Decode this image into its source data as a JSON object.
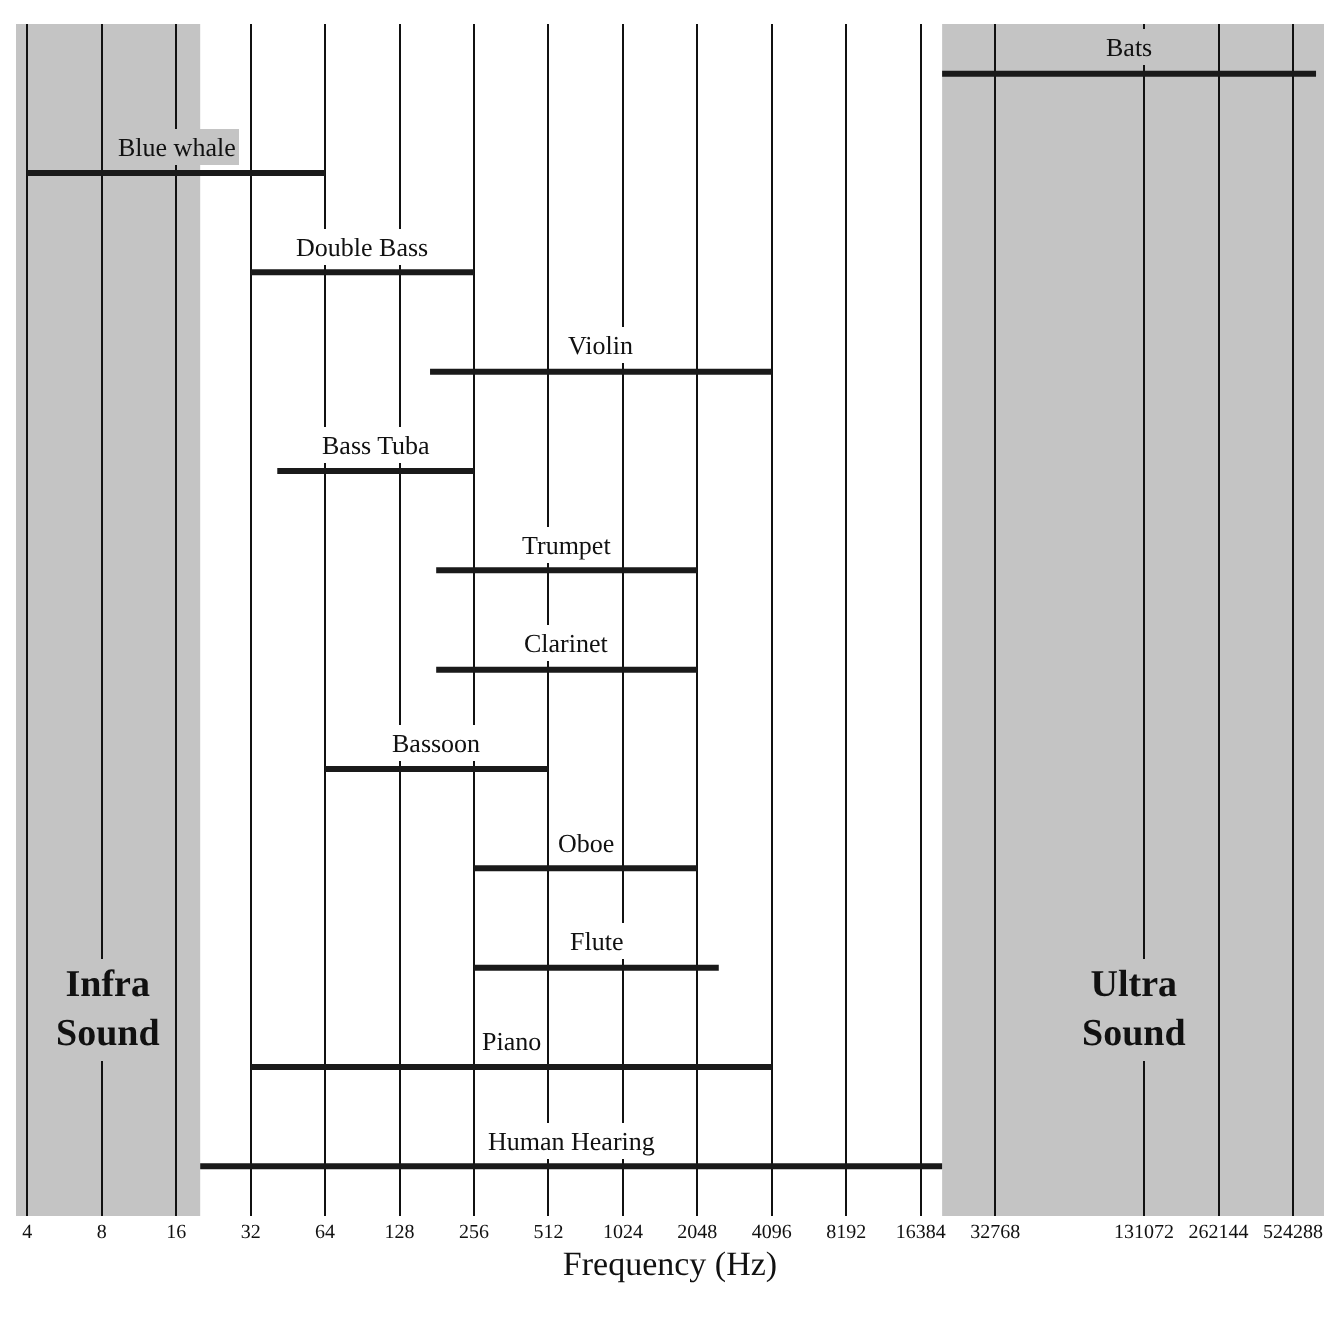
{
  "chart_data": {
    "type": "bar",
    "orientation": "horizontal",
    "xlabel": "Frequency (Hz)",
    "log": "x",
    "grid": "x",
    "tick_labels": "x",
    "categories": [
      "Bats",
      "Blue whale",
      "Double Bass",
      "Violin",
      "Bass Tuba",
      "Trumpet",
      "Clarinet",
      "Bassoon",
      "Oboe",
      "Flute",
      "Piano",
      "Human Hearing"
    ],
    "base": [
      20000,
      4,
      32,
      170,
      41,
      180,
      180,
      64,
      256,
      256,
      32,
      20
    ],
    "values": [
      630000,
      60,
      224,
      3926,
      215,
      1868,
      1868,
      448,
      1792,
      2244,
      4064,
      19980
    ],
    "color": "#1a1a1a",
    "xlim": [
      3.6,
      700000
    ],
    "xticks": [
      4,
      8,
      16,
      32,
      64,
      128,
      256,
      512,
      1024,
      2048,
      4096,
      8192,
      16384,
      32768,
      131072,
      262144,
      524288
    ],
    "bands": [
      {
        "axis": "x",
        "from": 3.6,
        "to": 20,
        "label": "Infra Sound",
        "color": "#c4c4c4"
      },
      {
        "axis": "x",
        "from": 20000,
        "to": 700000,
        "label": "Ultra Sound",
        "color": "#c4c4c4"
      }
    ]
  }
}
